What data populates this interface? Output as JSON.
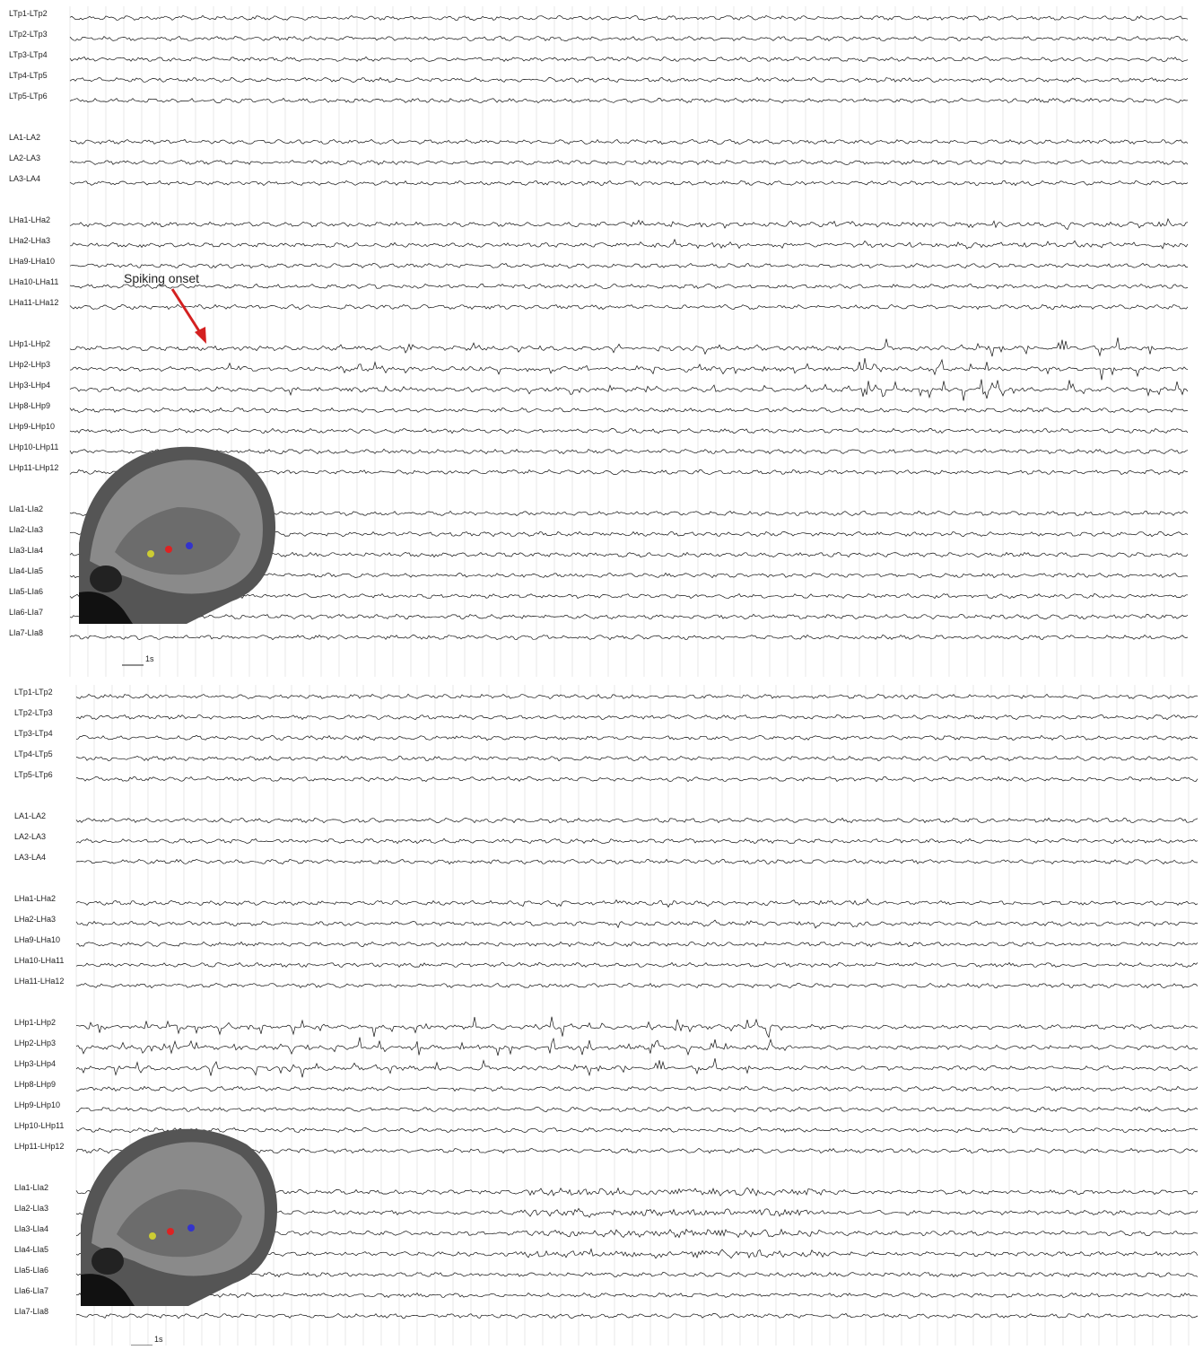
{
  "panels": [
    {
      "annotation": "Spiking onset",
      "scale_label": "1s",
      "groups": [
        {
          "channels": [
            "LTp1-LTp2",
            "LTp2-LTp3",
            "LTp3-LTp4",
            "LTp4-LTp5",
            "LTp5-LTp6"
          ]
        },
        {
          "channels": [
            "LA1-LA2",
            "LA2-LA3",
            "LA3-LA4"
          ]
        },
        {
          "channels": [
            "LHa1-LHa2",
            "LHa2-LHa3",
            "LHa9-LHa10",
            "LHa10-LHa11",
            "LHa11-LHa12"
          ]
        },
        {
          "channels": [
            "LHp1-LHp2",
            "LHp2-LHp3",
            "LHp3-LHp4",
            "LHp8-LHp9",
            "LHp9-LHp10",
            "LHp10-LHp11",
            "LHp11-LHp12"
          ]
        },
        {
          "channels": [
            "LIa1-LIa2",
            "LIa2-LIa3",
            "LIa3-LIa4",
            "LIa4-LIa5",
            "LIa5-LIa6",
            "LIa6-LIa7",
            "LIa7-LIa8"
          ]
        }
      ]
    },
    {
      "scale_label": "1s",
      "groups": [
        {
          "channels": [
            "LTp1-LTp2",
            "LTp2-LTp3",
            "LTp3-LTp4",
            "LTp4-LTp5",
            "LTp5-LTp6"
          ]
        },
        {
          "channels": [
            "LA1-LA2",
            "LA2-LA3",
            "LA3-LA4"
          ]
        },
        {
          "channels": [
            "LHa1-LHa2",
            "LHa2-LHa3",
            "LHa9-LHa10",
            "LHa10-LHa11",
            "LHa11-LHa12"
          ]
        },
        {
          "channels": [
            "LHp1-LHp2",
            "LHp2-LHp3",
            "LHp3-LHp4",
            "LHp8-LHp9",
            "LHp9-LHp10",
            "LHp10-LHp11",
            "LHp11-LHp12"
          ]
        },
        {
          "channels": [
            "LIa1-LIa2",
            "LIa2-LIa3",
            "LIa3-LIa4",
            "LIa4-LIa5",
            "LIa5-LIa6",
            "LIa6-LIa7",
            "LIa7-LIa8"
          ]
        }
      ]
    }
  ]
}
